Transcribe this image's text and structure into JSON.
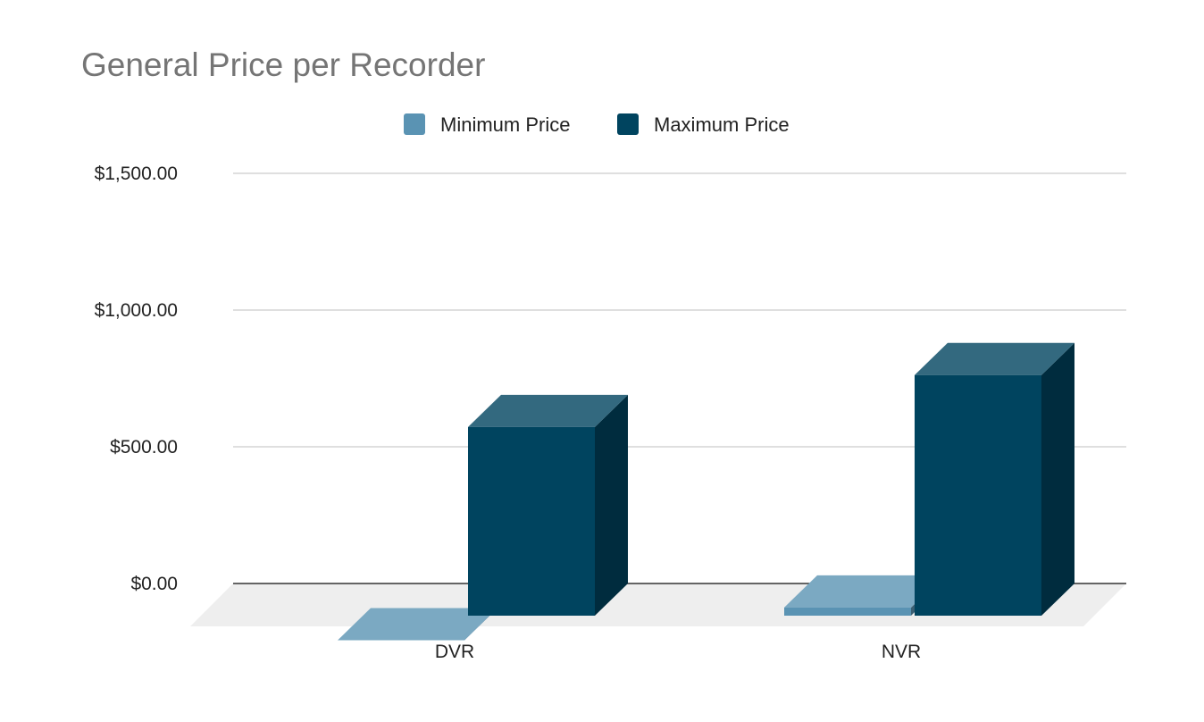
{
  "chart_data": {
    "type": "bar",
    "title": "General Price per Recorder",
    "categories": [
      "DVR",
      "NVR"
    ],
    "series": [
      {
        "name": "Minimum Price",
        "values": [
          -90,
          30
        ],
        "color": "#5a93b3"
      },
      {
        "name": "Maximum Price",
        "values": [
          690,
          880
        ],
        "color": "#00445f"
      }
    ],
    "yticks": [
      "$0.00",
      "$500.00",
      "$1,000.00",
      "$1,500.00"
    ],
    "ylim": [
      0,
      1500
    ],
    "xlabel": "",
    "ylabel": "",
    "grid": true,
    "legend": "top-center",
    "style": "3d"
  }
}
